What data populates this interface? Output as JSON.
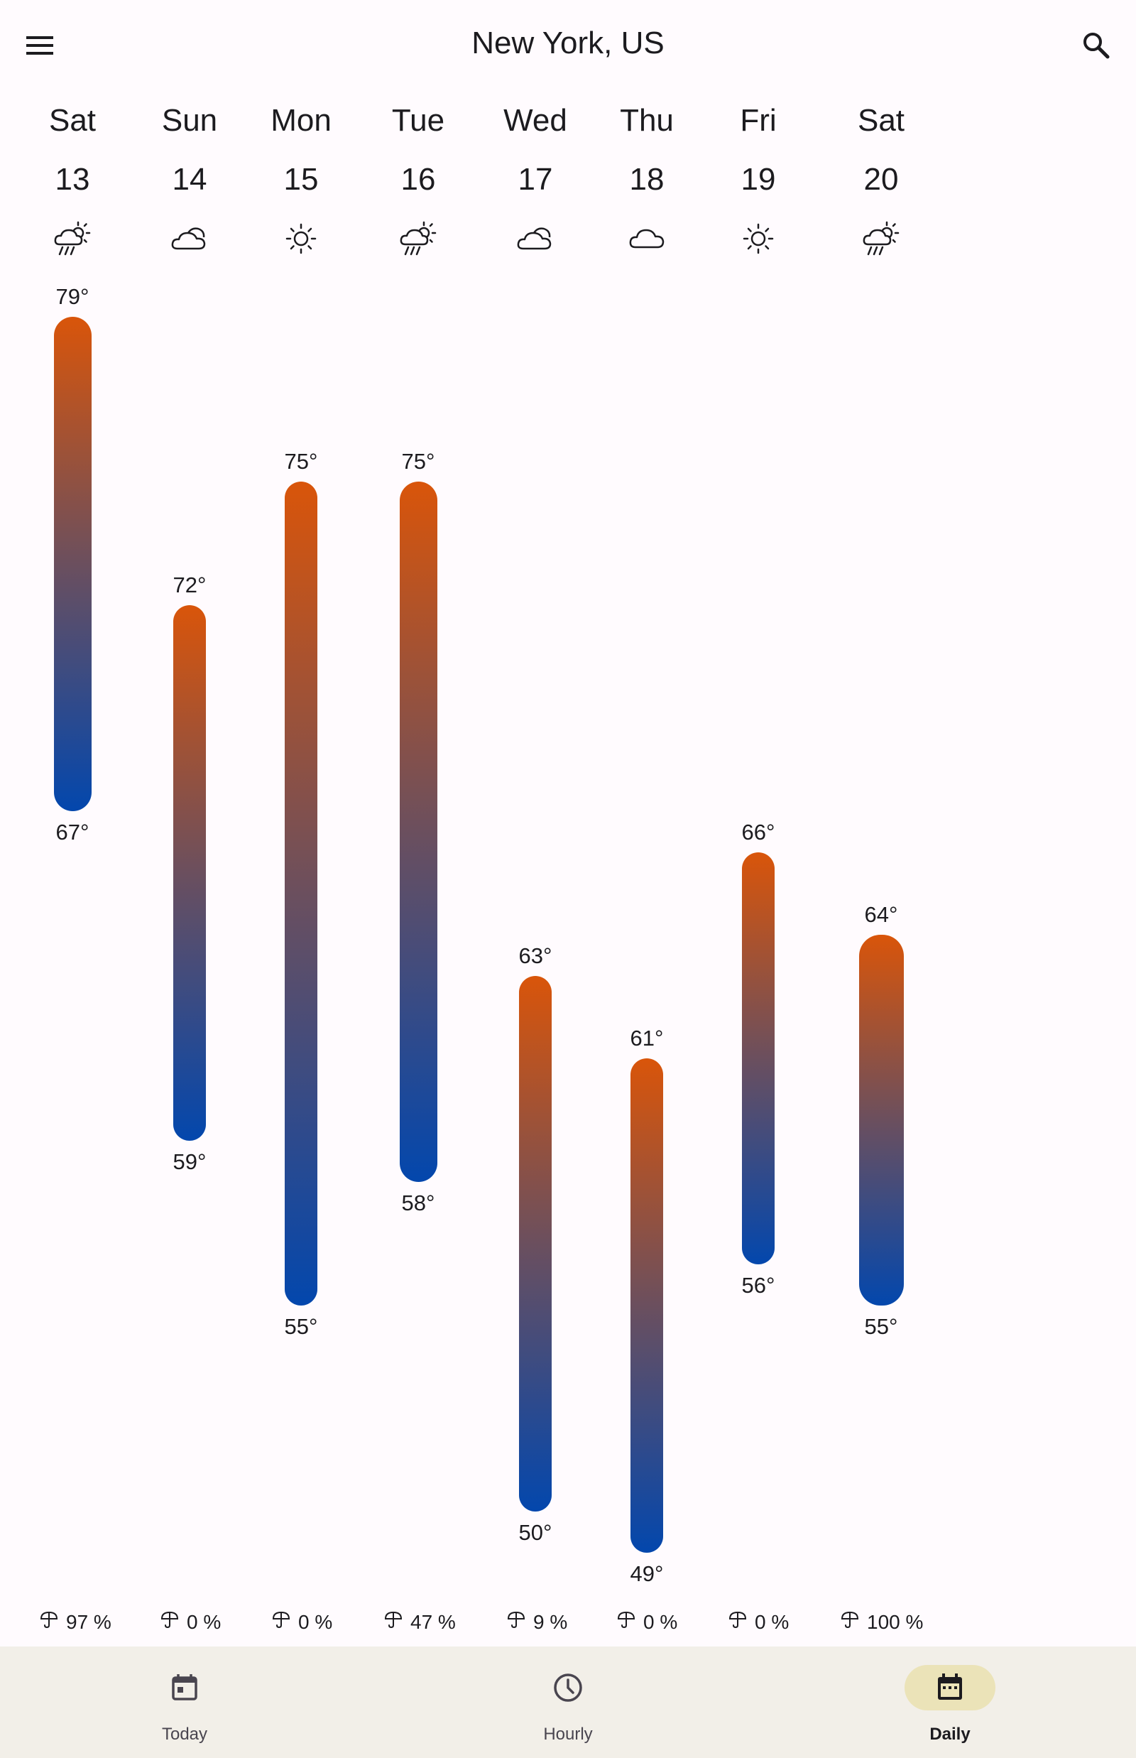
{
  "header": {
    "title": "New York, US",
    "menu_icon": "menu-icon",
    "search_icon": "search-icon"
  },
  "days": [
    {
      "name": "Sat",
      "date": "13",
      "icon": "sun-rain-icon",
      "high": "79°",
      "low": "67°",
      "precip": "97 %"
    },
    {
      "name": "Sun",
      "date": "14",
      "icon": "partly-cloudy-icon",
      "high": "72°",
      "low": "59°",
      "precip": "0 %"
    },
    {
      "name": "Mon",
      "date": "15",
      "icon": "sun-icon",
      "high": "75°",
      "low": "55°",
      "precip": "0 %"
    },
    {
      "name": "Tue",
      "date": "16",
      "icon": "sun-rain-icon",
      "high": "75°",
      "low": "58°",
      "precip": "47 %"
    },
    {
      "name": "Wed",
      "date": "17",
      "icon": "partly-cloudy-icon",
      "high": "63°",
      "low": "50°",
      "precip": "9 %"
    },
    {
      "name": "Thu",
      "date": "18",
      "icon": "cloud-icon",
      "high": "61°",
      "low": "49°",
      "precip": "0 %"
    },
    {
      "name": "Fri",
      "date": "19",
      "icon": "sun-icon",
      "high": "66°",
      "low": "56°",
      "precip": "0 %"
    },
    {
      "name": "Sat",
      "date": "20",
      "icon": "sun-rain-icon",
      "high": "64°",
      "low": "55°",
      "precip": "100 %"
    }
  ],
  "nav": {
    "items": [
      {
        "label": "Today",
        "icon": "calendar-today-icon",
        "active": false
      },
      {
        "label": "Hourly",
        "icon": "clock-icon",
        "active": false
      },
      {
        "label": "Daily",
        "icon": "calendar-daily-icon",
        "active": true
      }
    ]
  },
  "colors": {
    "bar_top": "#d9550a",
    "bar_bottom": "#0347ad",
    "nav_bg": "#f2efe8",
    "nav_active": "#ebe3b8"
  }
}
